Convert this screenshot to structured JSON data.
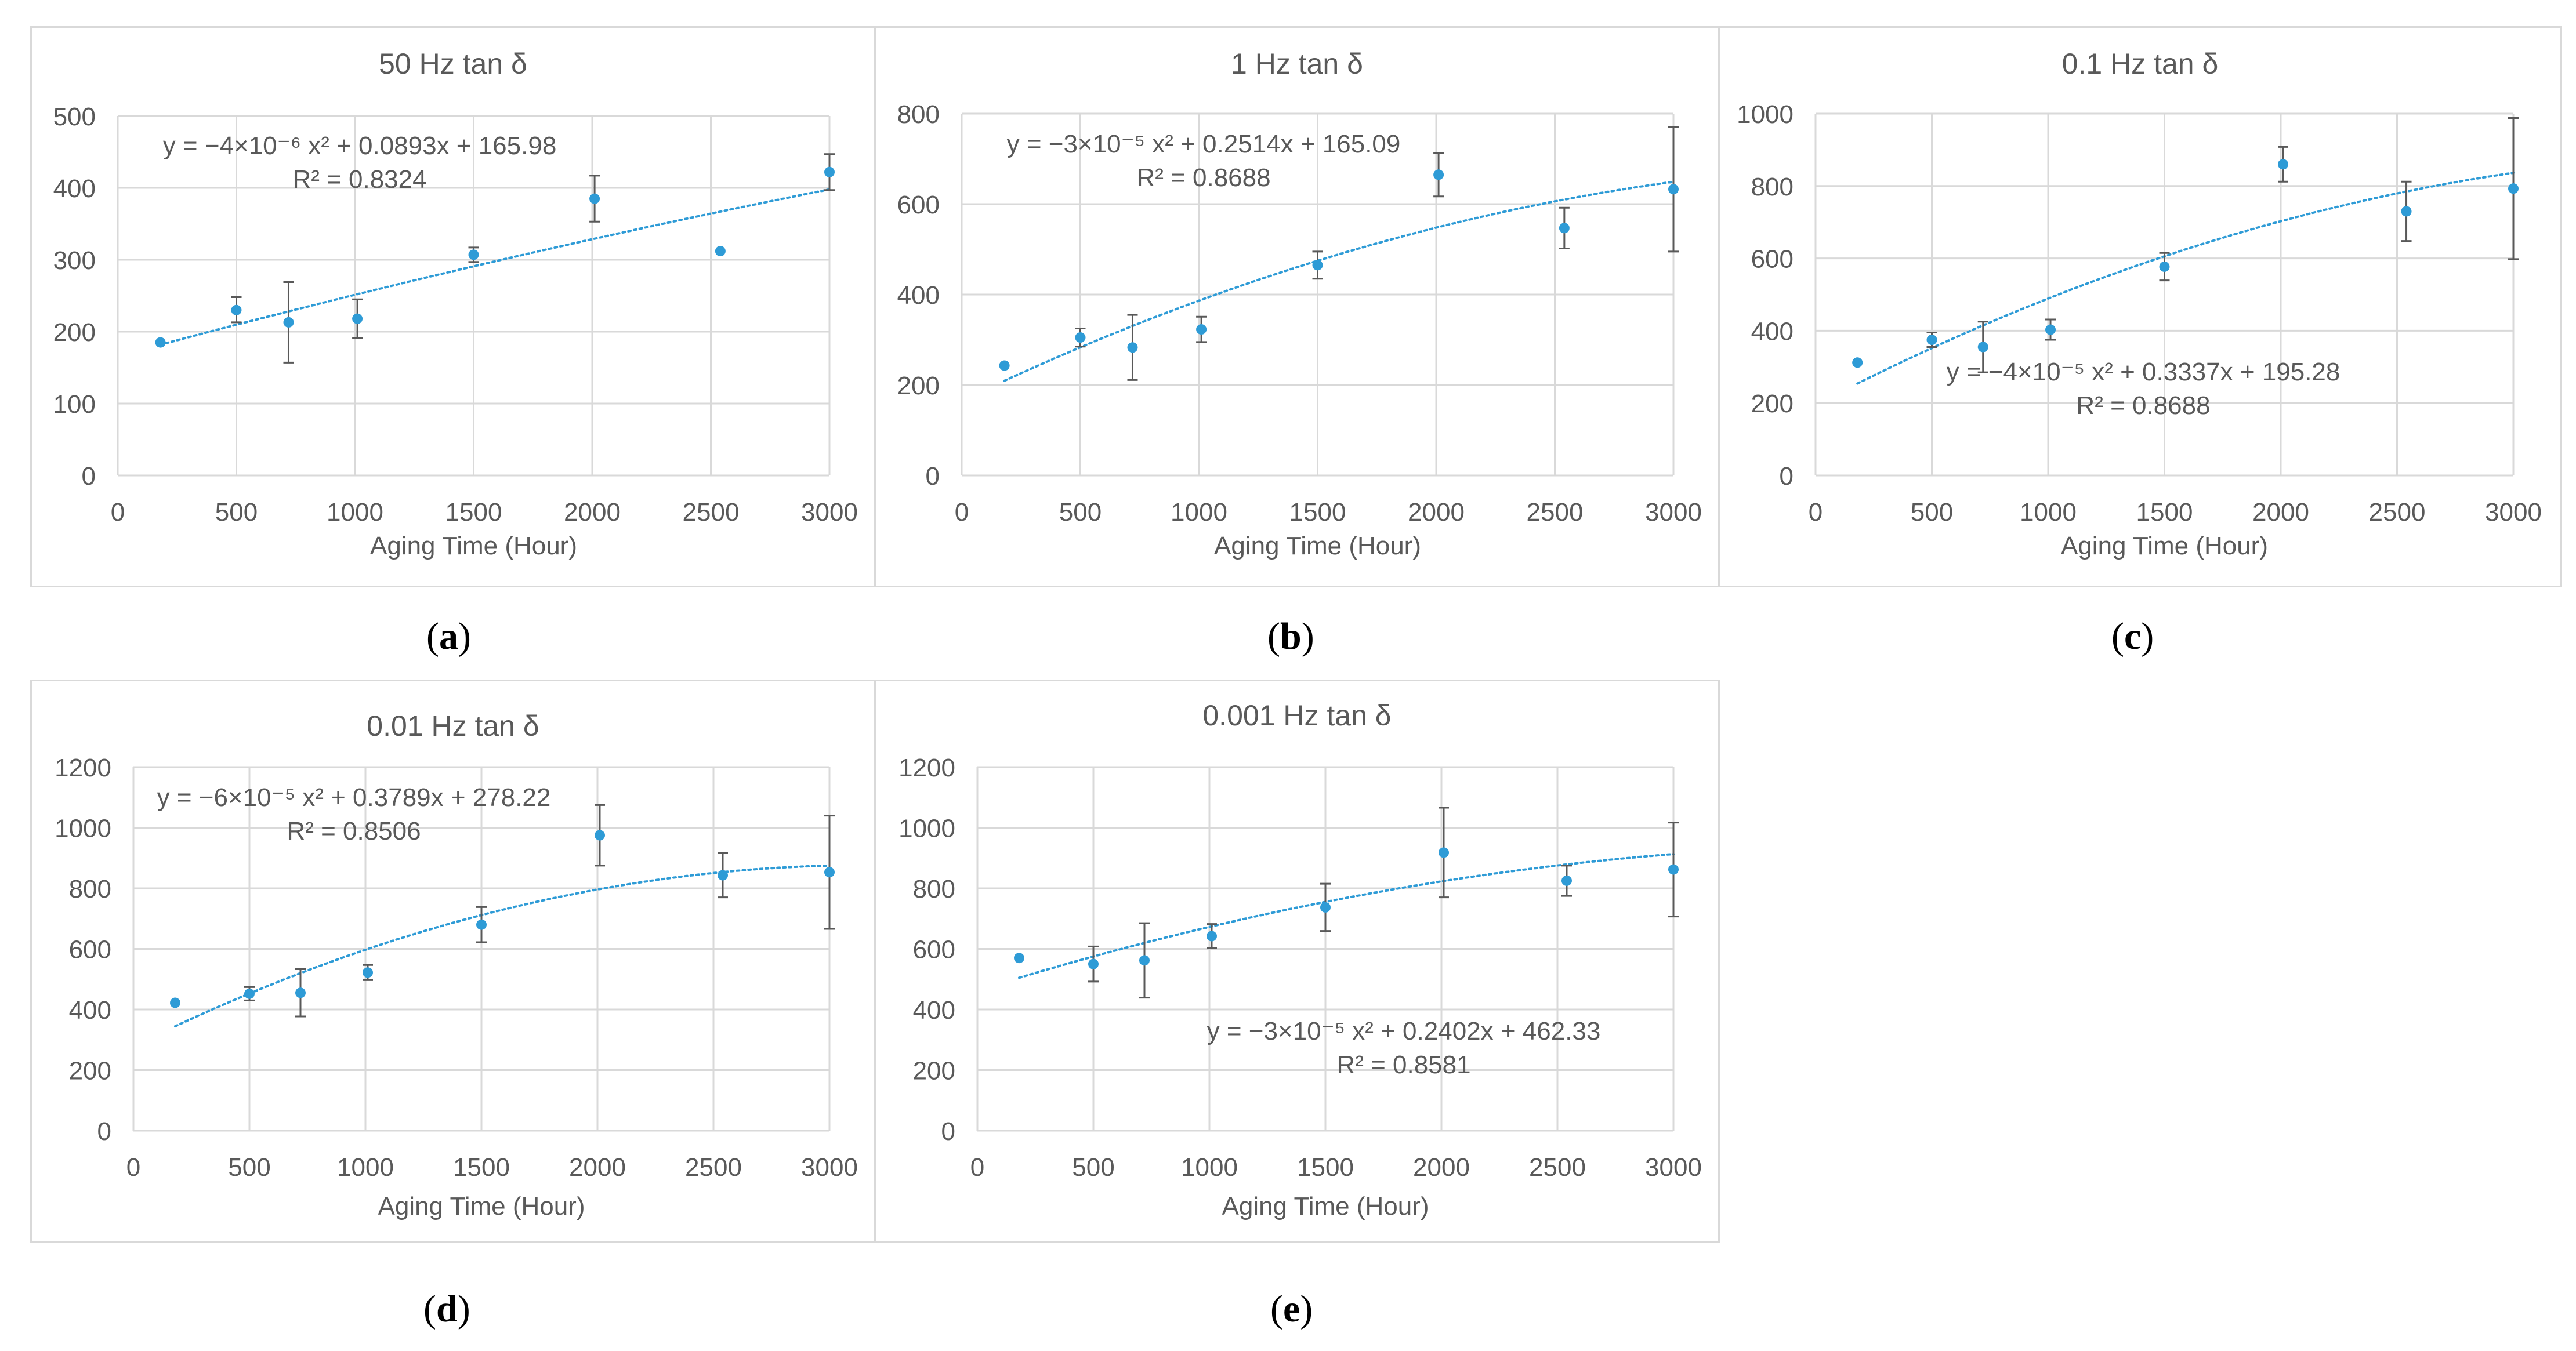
{
  "chart_data": [
    {
      "id": "a",
      "type": "scatter",
      "title": "50 Hz tan δ",
      "xlabel": "Aging Time (Hour)",
      "ylabel": "",
      "xlim": [
        0,
        3000
      ],
      "ylim": [
        0,
        500
      ],
      "xticks": [
        0,
        500,
        1000,
        1500,
        2000,
        2500,
        3000
      ],
      "yticks": [
        0,
        100,
        200,
        300,
        400,
        500
      ],
      "grid": true,
      "series": [
        {
          "x": [
            180,
            500,
            720,
            1010,
            1500,
            2010,
            2540,
            3000
          ],
          "y": [
            185,
            230,
            213,
            218,
            307,
            385,
            312,
            422
          ],
          "err_low": [
            0,
            17,
            56,
            27,
            10,
            32,
            0,
            25
          ],
          "err_high": [
            0,
            18,
            56,
            27,
            10,
            32,
            0,
            25
          ],
          "marker_color": "#2e9bd6"
        }
      ],
      "trendline": {
        "a": -4e-06,
        "b": 0.0893,
        "c": 165.98,
        "x_range": [
          180,
          3000
        ],
        "color": "#2e9bd6"
      },
      "annotation_lines": [
        "y = −4×10⁻⁶ x² + 0.0893x + 165.98",
        "R² = 0.8324"
      ],
      "caption_label": "a"
    },
    {
      "id": "b",
      "type": "scatter",
      "title": "1 Hz tan δ",
      "xlabel": "Aging Time (Hour)",
      "ylabel": "",
      "xlim": [
        0,
        3000
      ],
      "ylim": [
        0,
        800
      ],
      "xticks": [
        0,
        500,
        1000,
        1500,
        2000,
        2500,
        3000
      ],
      "yticks": [
        0,
        200,
        400,
        600,
        800
      ],
      "grid": true,
      "series": [
        {
          "x": [
            180,
            500,
            720,
            1010,
            1500,
            2010,
            2540,
            3000
          ],
          "y": [
            243,
            305,
            283,
            323,
            465,
            665,
            547,
            633
          ],
          "err_low": [
            0,
            20,
            72,
            28,
            30,
            48,
            45,
            138
          ],
          "err_high": [
            0,
            20,
            72,
            28,
            30,
            48,
            45,
            138
          ],
          "marker_color": "#2e9bd6"
        }
      ],
      "trendline": {
        "a": -3e-05,
        "b": 0.2514,
        "c": 165.09,
        "x_range": [
          180,
          3000
        ],
        "color": "#2e9bd6"
      },
      "annotation_lines": [
        "y = −3×10⁻⁵ x² + 0.2514x + 165.09",
        "R² = 0.8688"
      ],
      "caption_label": "b"
    },
    {
      "id": "c",
      "type": "scatter",
      "title": "0.1 Hz tan δ",
      "xlabel": "Aging Time (Hour)",
      "ylabel": "",
      "xlim": [
        0,
        3000
      ],
      "ylim": [
        0,
        1000
      ],
      "xticks": [
        0,
        500,
        1000,
        1500,
        2000,
        2500,
        3000
      ],
      "yticks": [
        0,
        200,
        400,
        600,
        800,
        1000
      ],
      "grid": true,
      "series": [
        {
          "x": [
            180,
            500,
            720,
            1010,
            1500,
            2010,
            2540,
            3000
          ],
          "y": [
            312,
            375,
            355,
            403,
            577,
            860,
            730,
            793
          ],
          "err_low": [
            0,
            20,
            70,
            28,
            38,
            48,
            82,
            195
          ],
          "err_high": [
            0,
            20,
            70,
            28,
            38,
            48,
            82,
            195
          ],
          "marker_color": "#2e9bd6"
        }
      ],
      "trendline": {
        "a": -4e-05,
        "b": 0.3337,
        "c": 195.28,
        "x_range": [
          180,
          3000
        ],
        "color": "#2e9bd6"
      },
      "annotation_lines": [
        "y = −4×10⁻⁵ x² + 0.3337x + 195.28",
        "R² = 0.8688"
      ],
      "caption_label": "c"
    },
    {
      "id": "d",
      "type": "scatter",
      "title": "0.01 Hz tan δ",
      "xlabel": "Aging Time (Hour)",
      "ylabel": "",
      "xlim": [
        0,
        3000
      ],
      "ylim": [
        0,
        1200
      ],
      "xticks": [
        0,
        500,
        1000,
        1500,
        2000,
        2500,
        3000
      ],
      "yticks": [
        0,
        200,
        400,
        600,
        800,
        1000,
        1200
      ],
      "grid": true,
      "series": [
        {
          "x": [
            180,
            500,
            720,
            1010,
            1500,
            2010,
            2540,
            3000
          ],
          "y": [
            422,
            452,
            455,
            522,
            680,
            975,
            843,
            853
          ],
          "err_low": [
            0,
            22,
            78,
            25,
            58,
            100,
            73,
            187
          ],
          "err_high": [
            0,
            22,
            78,
            25,
            58,
            100,
            73,
            187
          ],
          "marker_color": "#2e9bd6"
        }
      ],
      "trendline": {
        "a": -6e-05,
        "b": 0.3789,
        "c": 278.22,
        "x_range": [
          180,
          3000
        ],
        "color": "#2e9bd6"
      },
      "annotation_lines": [
        "y = −6×10⁻⁵ x² + 0.3789x + 278.22",
        "R² = 0.8506"
      ],
      "caption_label": "d"
    },
    {
      "id": "e",
      "type": "scatter",
      "title": "0.001 Hz tan δ",
      "xlabel": "Aging Time (Hour)",
      "ylabel": "",
      "xlim": [
        0,
        3000
      ],
      "ylim": [
        0,
        1200
      ],
      "xticks": [
        0,
        500,
        1000,
        1500,
        2000,
        2500,
        3000
      ],
      "yticks": [
        0,
        200,
        400,
        600,
        800,
        1000,
        1200
      ],
      "grid": true,
      "series": [
        {
          "x": [
            180,
            500,
            720,
            1010,
            1500,
            2010,
            2540,
            3000
          ],
          "y": [
            570,
            550,
            562,
            642,
            737,
            918,
            825,
            862
          ],
          "err_low": [
            0,
            58,
            123,
            40,
            78,
            148,
            50,
            155
          ],
          "err_high": [
            0,
            58,
            123,
            40,
            78,
            148,
            50,
            155
          ],
          "marker_color": "#2e9bd6"
        }
      ],
      "trendline": {
        "a": -3e-05,
        "b": 0.2402,
        "c": 462.33,
        "x_range": [
          180,
          3000
        ],
        "color": "#2e9bd6"
      },
      "annotation_lines": [
        "y = −3×10⁻⁵ x² + 0.2402x + 462.33",
        "R² = 0.8581"
      ],
      "caption_label": "e"
    }
  ],
  "colors": {
    "marker": "#2e9bd6",
    "errorbar": "#595959",
    "grid": "#d9d9d9",
    "text": "#595959"
  }
}
